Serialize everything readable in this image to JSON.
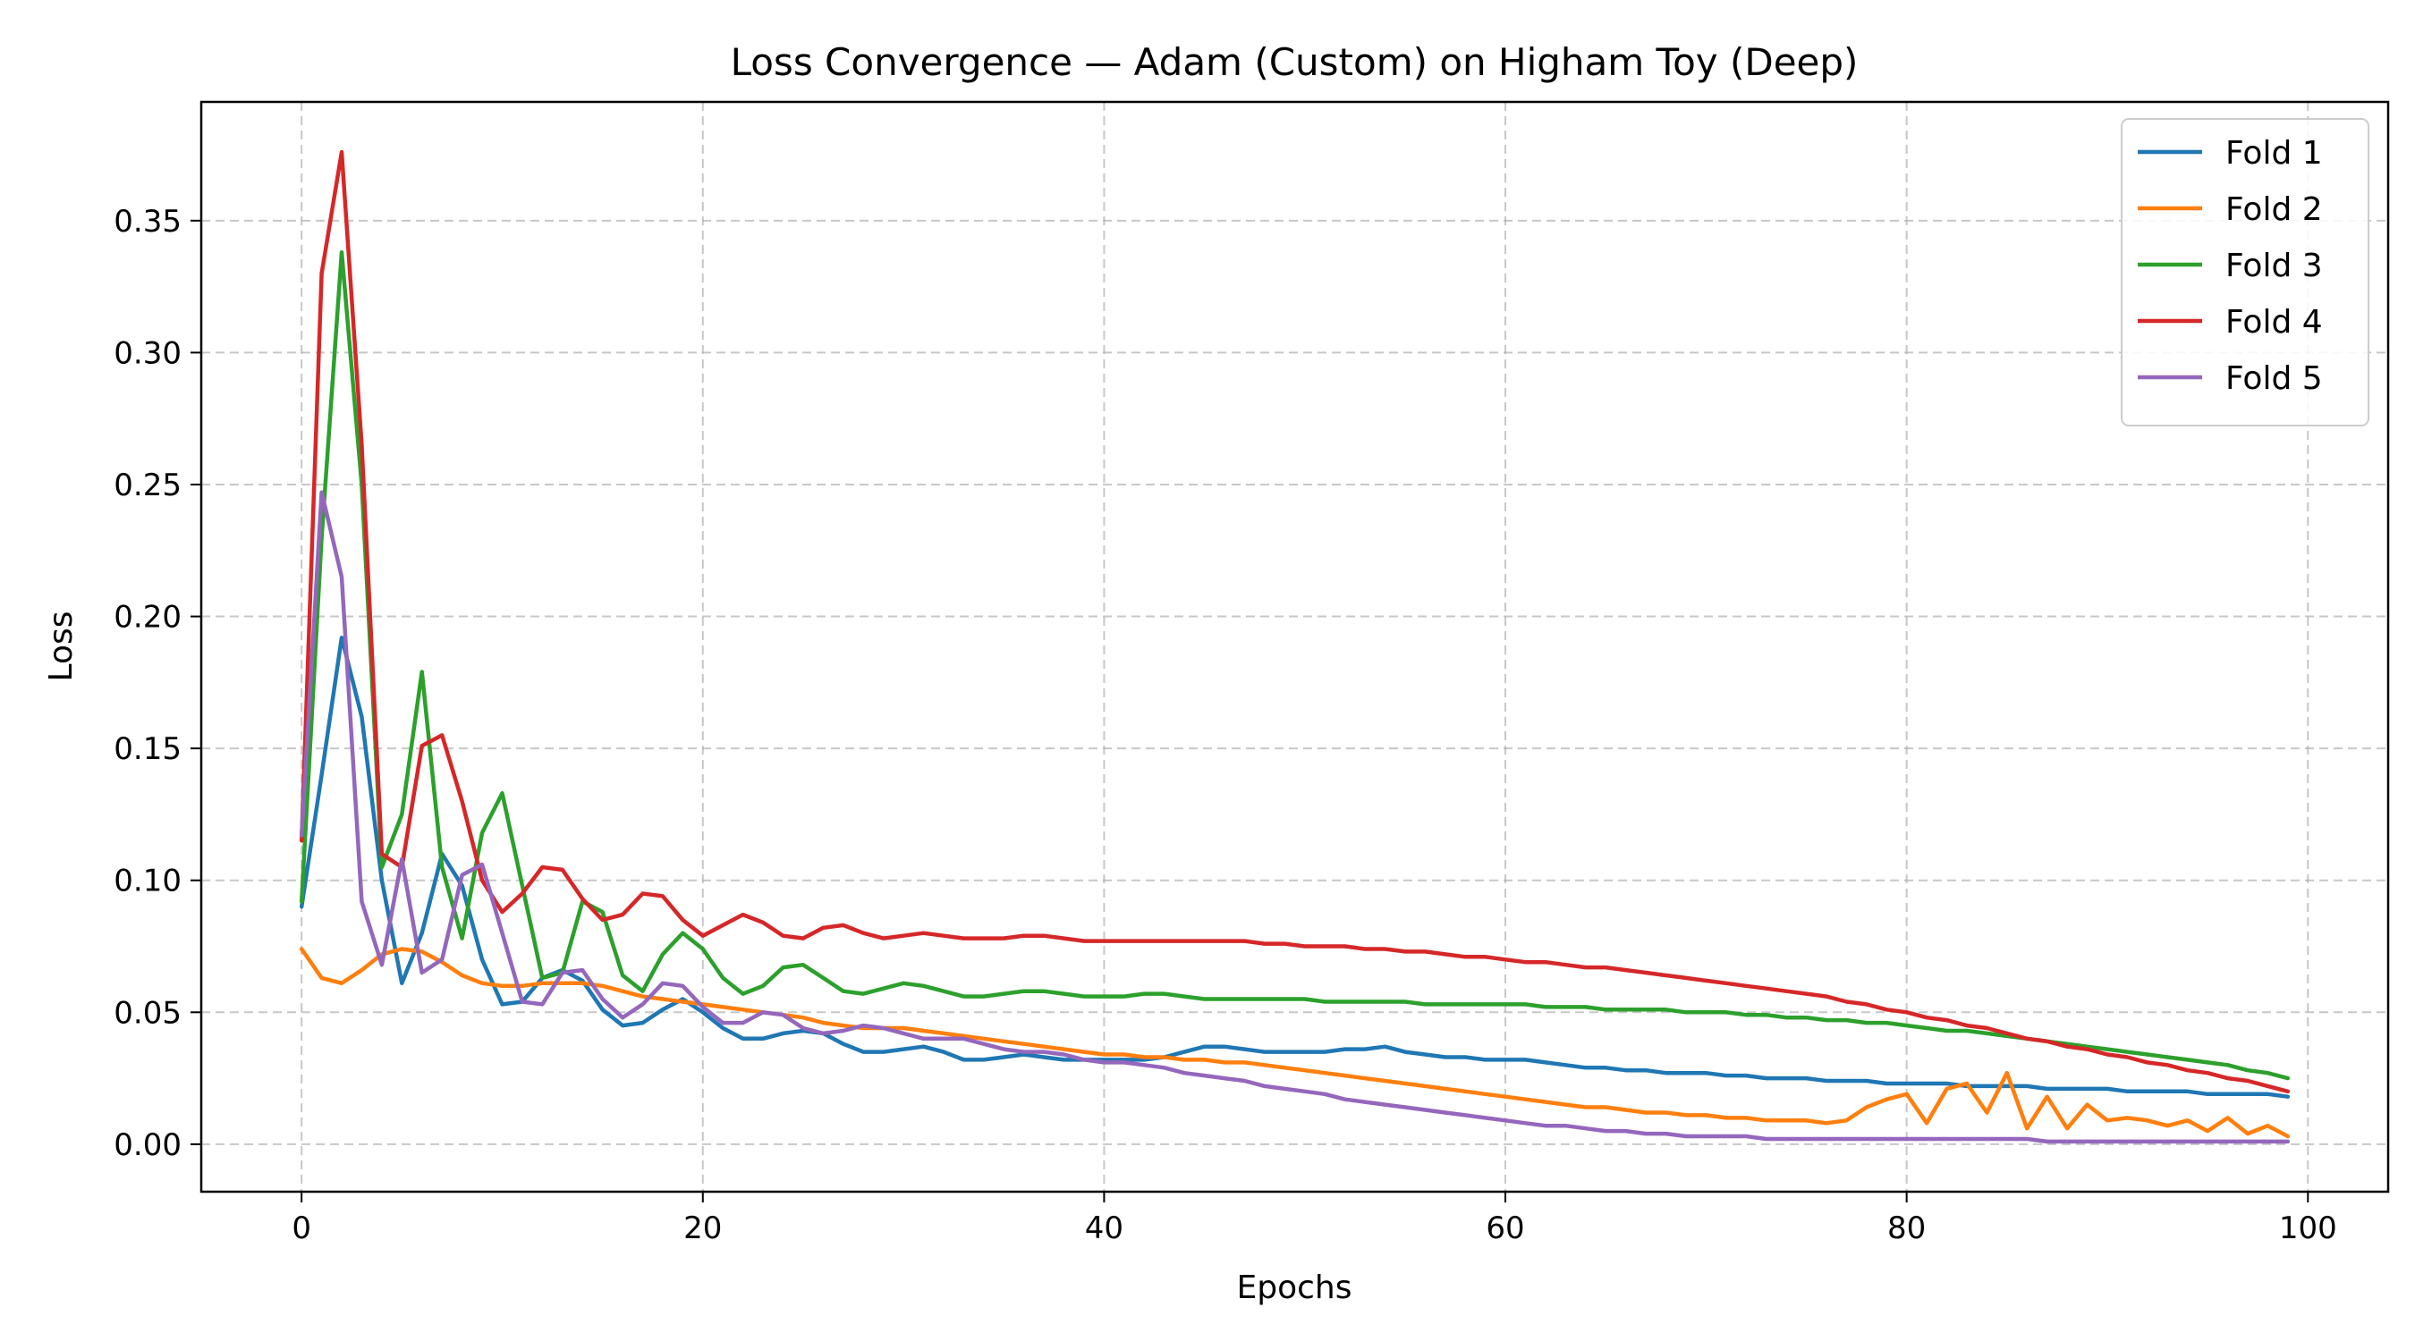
{
  "chart_data": {
    "type": "line",
    "title": "Loss Convergence — Adam (Custom) on Higham Toy (Deep)",
    "xlabel": "Epochs",
    "ylabel": "Loss",
    "xlim": [
      -5,
      104
    ],
    "ylim": [
      -0.018,
      0.395
    ],
    "xticks": [
      0,
      20,
      40,
      60,
      80,
      100
    ],
    "xtick_labels": [
      "0",
      "20",
      "40",
      "60",
      "80",
      "100"
    ],
    "yticks": [
      0.0,
      0.05,
      0.1,
      0.15,
      0.2,
      0.25,
      0.3,
      0.35
    ],
    "ytick_labels": [
      "0.00",
      "0.05",
      "0.10",
      "0.15",
      "0.20",
      "0.25",
      "0.30",
      "0.35"
    ],
    "grid": true,
    "legend_position": "top-right",
    "x": [
      0,
      1,
      2,
      3,
      4,
      5,
      6,
      7,
      8,
      9,
      10,
      11,
      12,
      13,
      14,
      15,
      16,
      17,
      18,
      19,
      20,
      21,
      22,
      23,
      24,
      25,
      26,
      27,
      28,
      29,
      30,
      31,
      32,
      33,
      34,
      35,
      36,
      37,
      38,
      39,
      40,
      41,
      42,
      43,
      44,
      45,
      46,
      47,
      48,
      49,
      50,
      51,
      52,
      53,
      54,
      55,
      56,
      57,
      58,
      59,
      60,
      61,
      62,
      63,
      64,
      65,
      66,
      67,
      68,
      69,
      70,
      71,
      72,
      73,
      74,
      75,
      76,
      77,
      78,
      79,
      80,
      81,
      82,
      83,
      84,
      85,
      86,
      87,
      88,
      89,
      90,
      91,
      92,
      93,
      94,
      95,
      96,
      97,
      98,
      99
    ],
    "series": [
      {
        "name": "Fold 1",
        "color": "#1f77b4",
        "values": [
          0.09,
          0.14,
          0.192,
          0.162,
          0.1,
          0.061,
          0.08,
          0.11,
          0.098,
          0.07,
          0.053,
          0.054,
          0.063,
          0.066,
          0.062,
          0.051,
          0.045,
          0.046,
          0.051,
          0.055,
          0.05,
          0.044,
          0.04,
          0.04,
          0.042,
          0.043,
          0.042,
          0.038,
          0.035,
          0.035,
          0.036,
          0.037,
          0.035,
          0.032,
          0.032,
          0.033,
          0.034,
          0.033,
          0.032,
          0.032,
          0.032,
          0.032,
          0.032,
          0.033,
          0.035,
          0.037,
          0.037,
          0.036,
          0.035,
          0.035,
          0.035,
          0.035,
          0.036,
          0.036,
          0.037,
          0.035,
          0.034,
          0.033,
          0.033,
          0.032,
          0.032,
          0.032,
          0.031,
          0.03,
          0.029,
          0.029,
          0.028,
          0.028,
          0.027,
          0.027,
          0.027,
          0.026,
          0.026,
          0.025,
          0.025,
          0.025,
          0.024,
          0.024,
          0.024,
          0.023,
          0.023,
          0.023,
          0.023,
          0.022,
          0.022,
          0.022,
          0.022,
          0.021,
          0.021,
          0.021,
          0.021,
          0.02,
          0.02,
          0.02,
          0.02,
          0.019,
          0.019,
          0.019,
          0.019,
          0.018
        ]
      },
      {
        "name": "Fold 2",
        "color": "#ff7f0e",
        "values": [
          0.074,
          0.063,
          0.061,
          0.066,
          0.072,
          0.074,
          0.073,
          0.069,
          0.064,
          0.061,
          0.06,
          0.06,
          0.061,
          0.061,
          0.061,
          0.06,
          0.058,
          0.056,
          0.055,
          0.054,
          0.053,
          0.052,
          0.051,
          0.05,
          0.049,
          0.048,
          0.046,
          0.045,
          0.044,
          0.044,
          0.044,
          0.043,
          0.042,
          0.041,
          0.04,
          0.039,
          0.038,
          0.037,
          0.036,
          0.035,
          0.034,
          0.034,
          0.033,
          0.033,
          0.032,
          0.032,
          0.031,
          0.031,
          0.03,
          0.029,
          0.028,
          0.027,
          0.026,
          0.025,
          0.024,
          0.023,
          0.022,
          0.021,
          0.02,
          0.019,
          0.018,
          0.017,
          0.016,
          0.015,
          0.014,
          0.014,
          0.013,
          0.012,
          0.012,
          0.011,
          0.011,
          0.01,
          0.01,
          0.009,
          0.009,
          0.009,
          0.008,
          0.009,
          0.014,
          0.017,
          0.019,
          0.008,
          0.021,
          0.023,
          0.012,
          0.027,
          0.006,
          0.018,
          0.006,
          0.015,
          0.009,
          0.01,
          0.009,
          0.007,
          0.009,
          0.005,
          0.01,
          0.004,
          0.007,
          0.003
        ]
      },
      {
        "name": "Fold 3",
        "color": "#2ca02c",
        "values": [
          0.092,
          0.23,
          0.338,
          0.25,
          0.105,
          0.125,
          0.179,
          0.105,
          0.078,
          0.118,
          0.133,
          0.098,
          0.063,
          0.065,
          0.092,
          0.088,
          0.064,
          0.058,
          0.072,
          0.08,
          0.074,
          0.063,
          0.057,
          0.06,
          0.067,
          0.068,
          0.063,
          0.058,
          0.057,
          0.059,
          0.061,
          0.06,
          0.058,
          0.056,
          0.056,
          0.057,
          0.058,
          0.058,
          0.057,
          0.056,
          0.056,
          0.056,
          0.057,
          0.057,
          0.056,
          0.055,
          0.055,
          0.055,
          0.055,
          0.055,
          0.055,
          0.054,
          0.054,
          0.054,
          0.054,
          0.054,
          0.053,
          0.053,
          0.053,
          0.053,
          0.053,
          0.053,
          0.052,
          0.052,
          0.052,
          0.051,
          0.051,
          0.051,
          0.051,
          0.05,
          0.05,
          0.05,
          0.049,
          0.049,
          0.048,
          0.048,
          0.047,
          0.047,
          0.046,
          0.046,
          0.045,
          0.044,
          0.043,
          0.043,
          0.042,
          0.041,
          0.04,
          0.039,
          0.038,
          0.037,
          0.036,
          0.035,
          0.034,
          0.033,
          0.032,
          0.031,
          0.03,
          0.028,
          0.027,
          0.025
        ]
      },
      {
        "name": "Fold 4",
        "color": "#d62728",
        "values": [
          0.115,
          0.33,
          0.376,
          0.265,
          0.11,
          0.105,
          0.151,
          0.155,
          0.13,
          0.1,
          0.088,
          0.095,
          0.105,
          0.104,
          0.093,
          0.085,
          0.087,
          0.095,
          0.094,
          0.085,
          0.079,
          0.083,
          0.087,
          0.084,
          0.079,
          0.078,
          0.082,
          0.083,
          0.08,
          0.078,
          0.079,
          0.08,
          0.079,
          0.078,
          0.078,
          0.078,
          0.079,
          0.079,
          0.078,
          0.077,
          0.077,
          0.077,
          0.077,
          0.077,
          0.077,
          0.077,
          0.077,
          0.077,
          0.076,
          0.076,
          0.075,
          0.075,
          0.075,
          0.074,
          0.074,
          0.073,
          0.073,
          0.072,
          0.071,
          0.071,
          0.07,
          0.069,
          0.069,
          0.068,
          0.067,
          0.067,
          0.066,
          0.065,
          0.064,
          0.063,
          0.062,
          0.061,
          0.06,
          0.059,
          0.058,
          0.057,
          0.056,
          0.054,
          0.053,
          0.051,
          0.05,
          0.048,
          0.047,
          0.045,
          0.044,
          0.042,
          0.04,
          0.039,
          0.037,
          0.036,
          0.034,
          0.033,
          0.031,
          0.03,
          0.028,
          0.027,
          0.025,
          0.024,
          0.022,
          0.02
        ]
      },
      {
        "name": "Fold 5",
        "color": "#9467bd",
        "values": [
          0.117,
          0.247,
          0.215,
          0.092,
          0.068,
          0.108,
          0.065,
          0.07,
          0.102,
          0.106,
          0.08,
          0.054,
          0.053,
          0.065,
          0.066,
          0.055,
          0.048,
          0.053,
          0.061,
          0.06,
          0.052,
          0.046,
          0.046,
          0.05,
          0.049,
          0.044,
          0.042,
          0.043,
          0.045,
          0.044,
          0.042,
          0.04,
          0.04,
          0.04,
          0.038,
          0.036,
          0.035,
          0.035,
          0.034,
          0.032,
          0.031,
          0.031,
          0.03,
          0.029,
          0.027,
          0.026,
          0.025,
          0.024,
          0.022,
          0.021,
          0.02,
          0.019,
          0.017,
          0.016,
          0.015,
          0.014,
          0.013,
          0.012,
          0.011,
          0.01,
          0.009,
          0.008,
          0.007,
          0.007,
          0.006,
          0.005,
          0.005,
          0.004,
          0.004,
          0.003,
          0.003,
          0.003,
          0.003,
          0.002,
          0.002,
          0.002,
          0.002,
          0.002,
          0.002,
          0.002,
          0.002,
          0.002,
          0.002,
          0.002,
          0.002,
          0.002,
          0.002,
          0.001,
          0.001,
          0.001,
          0.001,
          0.001,
          0.001,
          0.001,
          0.001,
          0.001,
          0.001,
          0.001,
          0.001,
          0.001
        ]
      }
    ]
  }
}
